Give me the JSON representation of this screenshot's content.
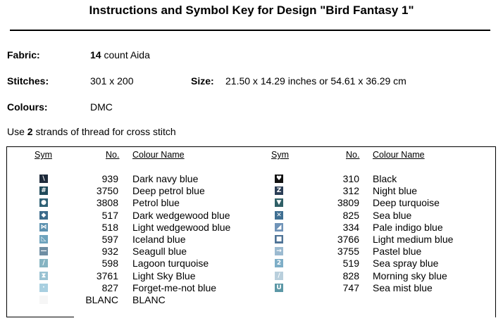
{
  "title": "Instructions and Symbol Key for Design \"Bird Fantasy 1\"",
  "details": {
    "fabric_label": "Fabric:",
    "fabric_count": "14",
    "fabric_type": "count Aida",
    "stitches_label": "Stitches:",
    "stitches_value": "301 x 200",
    "size_label": "Size:",
    "size_value": "21.50 x 14.29 inches or 54.61 x 36.29 cm",
    "colours_label": "Colours:",
    "colours_value": "DMC"
  },
  "note": {
    "prefix": "Use",
    "strands": "2",
    "suffix": "strands of thread for cross stitch"
  },
  "table": {
    "headers": {
      "sym": "Sym",
      "no": "No.",
      "colour_name": "Colour Name"
    },
    "left": [
      {
        "glyph": "\\",
        "icon": "backslash-icon",
        "color": "#1e2a3a",
        "no": "939",
        "name": "Dark navy blue"
      },
      {
        "glyph": "#",
        "icon": "hash-icon",
        "color": "#1f4a5a",
        "no": "3750",
        "name": "Deep petrol blue"
      },
      {
        "glyph": "●",
        "icon": "circle-icon",
        "color": "#2f6175",
        "no": "3808",
        "name": "Petrol blue"
      },
      {
        "glyph": "◆",
        "icon": "diamond-icon",
        "color": "#3d6c8c",
        "no": "517",
        "name": "Dark wedgewood blue"
      },
      {
        "glyph": "⋈",
        "icon": "bowtie-icon",
        "color": "#5d92b0",
        "no": "518",
        "name": "Light wedgewood blue"
      },
      {
        "glyph": "◺",
        "icon": "triangle-corner-icon",
        "color": "#6ea3bd",
        "no": "597",
        "name": "Iceland blue"
      },
      {
        "glyph": "—",
        "icon": "dash-icon",
        "color": "#6f8ea3",
        "no": "932",
        "name": "Seagull blue"
      },
      {
        "glyph": "∕",
        "icon": "slash-icon",
        "color": "#86b4c2",
        "no": "598",
        "name": "Lagoon turquoise"
      },
      {
        "glyph": "⧗",
        "icon": "hourglass-icon",
        "color": "#99c2d2",
        "no": "3761",
        "name": "Light Sky Blue"
      },
      {
        "glyph": "·",
        "icon": "dot-icon",
        "color": "#a8cfe0",
        "no": "827",
        "name": "Forget-me-not blue"
      },
      {
        "glyph": "",
        "icon": "blank-icon",
        "color": "#f6f6f6",
        "no": "BLANC",
        "name": "BLANC"
      }
    ],
    "right": [
      {
        "glyph": "♥",
        "icon": "heart-icon",
        "color": "#111111",
        "no": "310",
        "name": "Black"
      },
      {
        "glyph": "Z",
        "icon": "letter-z-icon",
        "color": "#2a3d55",
        "no": "312",
        "name": "Night blue"
      },
      {
        "glyph": "▼",
        "icon": "triangle-down-icon",
        "color": "#2f5f66",
        "no": "3809",
        "name": "Deep turquoise"
      },
      {
        "glyph": "✕",
        "icon": "cross-icon",
        "color": "#3f6f92",
        "no": "825",
        "name": "Sea blue"
      },
      {
        "glyph": "◢",
        "icon": "triangle-icon",
        "color": "#6f93b8",
        "no": "334",
        "name": "Pale indigo blue"
      },
      {
        "glyph": "■",
        "icon": "square-icon",
        "color": "#4f7396",
        "no": "3766",
        "name": "Light medium blue"
      },
      {
        "glyph": "→",
        "icon": "arrow-right-icon",
        "color": "#9bbad0",
        "no": "3755",
        "name": "Pastel blue"
      },
      {
        "glyph": "2",
        "icon": "digit-two-icon",
        "color": "#7eaec7",
        "no": "519",
        "name": "Sea spray blue"
      },
      {
        "glyph": "/",
        "icon": "forward-slash-icon",
        "color": "#b9cfdc",
        "no": "828",
        "name": "Morning sky blue"
      },
      {
        "glyph": "U",
        "icon": "letter-u-icon",
        "color": "#5c98a6",
        "no": "747",
        "name": "Sea mist blue"
      }
    ]
  }
}
